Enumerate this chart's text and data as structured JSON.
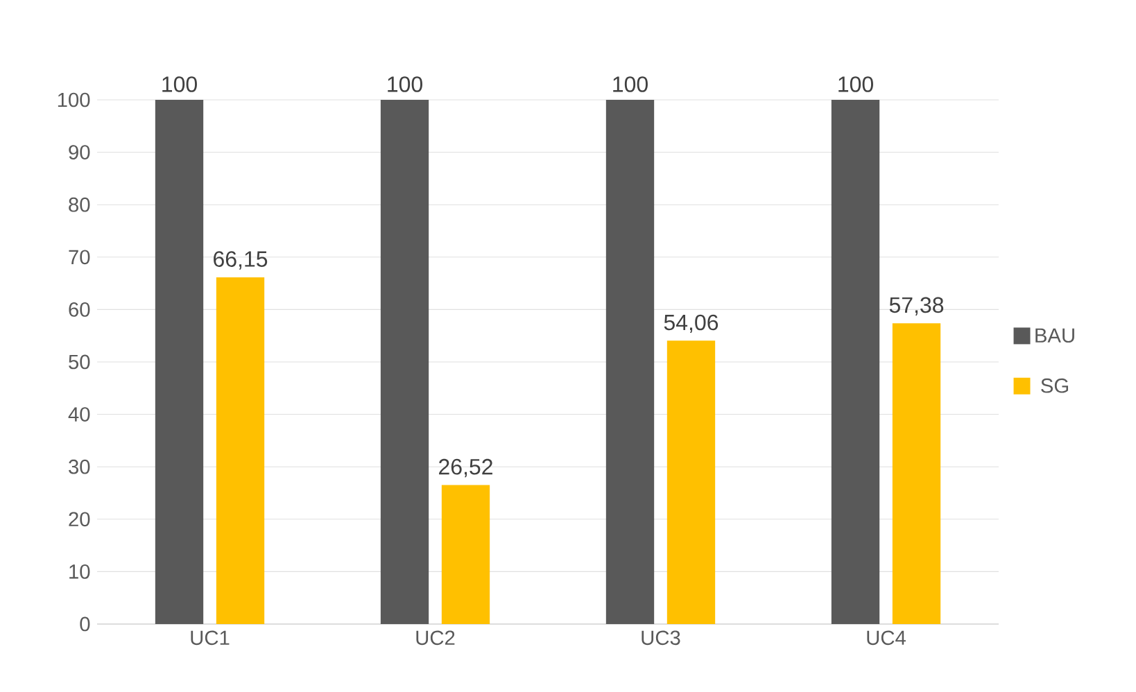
{
  "chart_data": {
    "type": "bar",
    "categories": [
      "UC1",
      "UC2",
      "UC3",
      "UC4"
    ],
    "series": [
      {
        "name": "BAU",
        "color": "#595959",
        "values": [
          100,
          100,
          100,
          100
        ],
        "value_labels": [
          "100",
          "100",
          "100",
          "100"
        ]
      },
      {
        "name": "SG",
        "color": "#ffc000",
        "values": [
          66.15,
          26.52,
          54.06,
          57.38
        ],
        "value_labels": [
          "66,15",
          "26,52",
          "54,06",
          "57,38"
        ]
      }
    ],
    "ylim": [
      0,
      100
    ],
    "yticks": [
      0,
      10,
      20,
      30,
      40,
      50,
      60,
      70,
      80,
      90,
      100
    ],
    "grid": "y",
    "legend": "right"
  }
}
